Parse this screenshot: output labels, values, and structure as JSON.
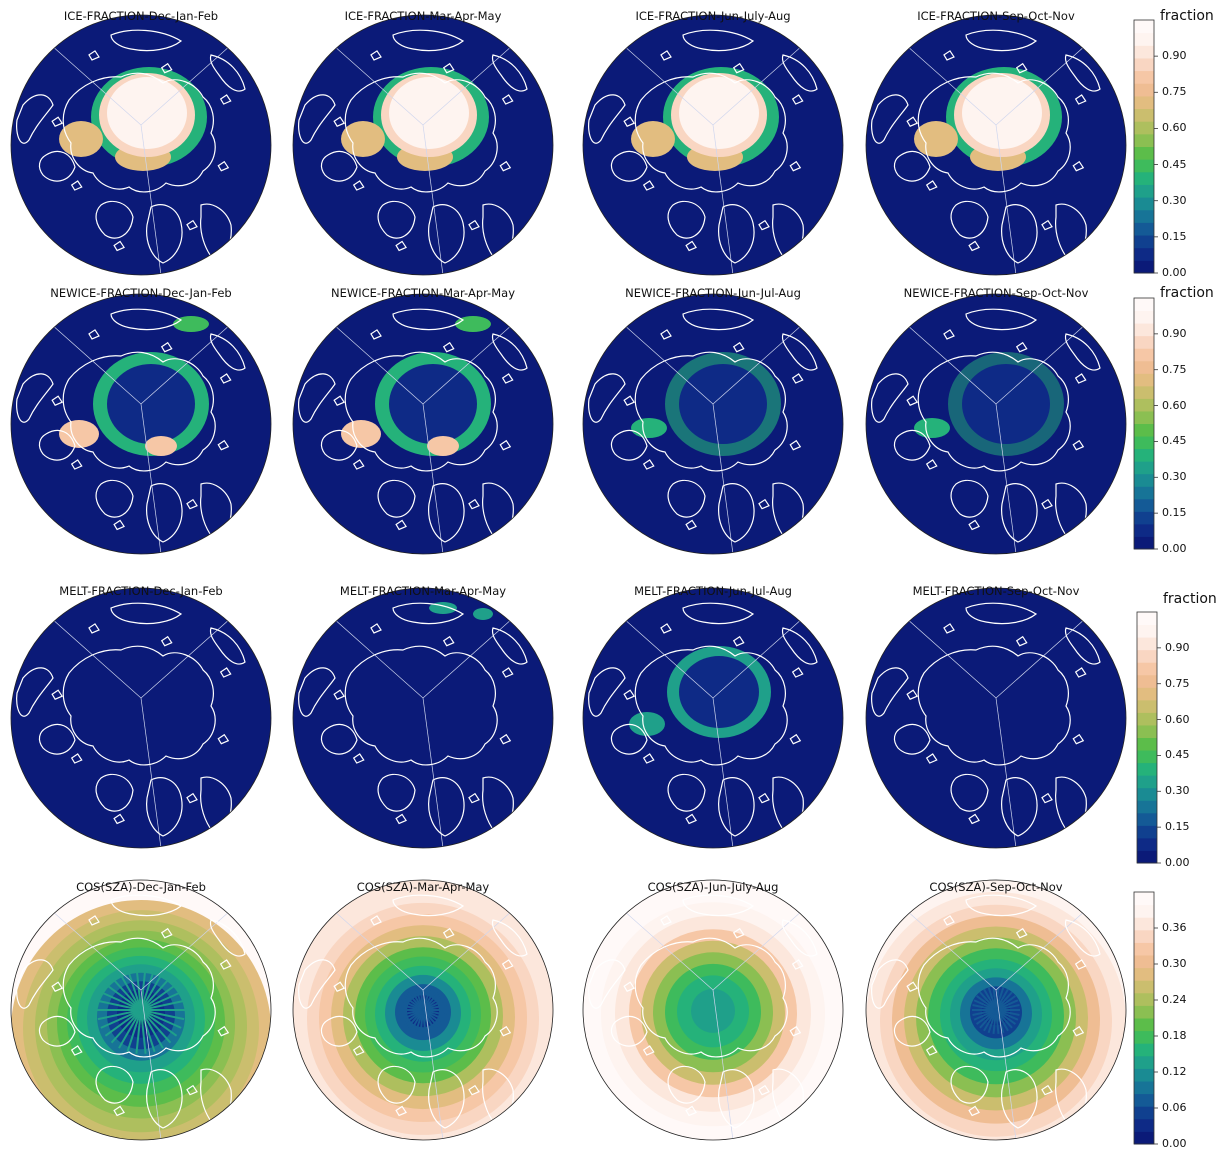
{
  "colors": {
    "scale": [
      "#0b1a78",
      "#0e2a86",
      "#10408f",
      "#145a96",
      "#177497",
      "#1a8b93",
      "#1fa08a",
      "#25b27a",
      "#3ebb5c",
      "#5cbd4a",
      "#8bbf52",
      "#aebf5e",
      "#cbbe6e",
      "#e2bd80",
      "#efbd93",
      "#f6c7a6",
      "#f9d6c2",
      "#fce7dc",
      "#fef4f0",
      "#fff9f8"
    ],
    "coast": "#ffffff"
  },
  "rows": [
    {
      "kind": "ice",
      "colorbar_label": "fraction",
      "ticks": [
        "0.00",
        "0.15",
        "0.30",
        "0.45",
        "0.60",
        "0.75",
        "0.90"
      ],
      "panels": [
        {
          "title": "ICE-FRACTION-Dec-Jan-Feb"
        },
        {
          "title": "ICE-FRACTION-Mar-Apr-May"
        },
        {
          "title": "ICE-FRACTION-Jun-July-Aug"
        },
        {
          "title": "ICE-FRACTION-Sep-Oct-Nov"
        }
      ]
    },
    {
      "kind": "newice",
      "colorbar_label": "fraction",
      "ticks": [
        "0.00",
        "0.15",
        "0.30",
        "0.45",
        "0.60",
        "0.75",
        "0.90"
      ],
      "panels": [
        {
          "title": "NEWICE-FRACTION-Dec-Jan-Feb"
        },
        {
          "title": "NEWICE-FRACTION-Mar-Apr-May"
        },
        {
          "title": "NEWICE-FRACTION-Jun-Jul-Aug"
        },
        {
          "title": "NEWICE-FRACTION-Sep-Oct-Nov"
        }
      ]
    },
    {
      "kind": "melt",
      "colorbar_label": "fraction",
      "ticks": [
        "0.00",
        "0.15",
        "0.30",
        "0.45",
        "0.60",
        "0.75",
        "0.90"
      ],
      "panels": [
        {
          "title": "MELT-FRACTION-Dec-Jan-Feb"
        },
        {
          "title": "MELT-FRACTION-Mar-Apr-May"
        },
        {
          "title": "MELT-FRACTION-Jun-Jul-Aug"
        },
        {
          "title": "MELT-FRACTION-Sep-Oct-Nov"
        }
      ]
    },
    {
      "kind": "cos",
      "colorbar_label": "",
      "ticks": [
        "0.00",
        "0.06",
        "0.12",
        "0.18",
        "0.24",
        "0.30",
        "0.36"
      ],
      "panels": [
        {
          "title": "COS(SZA)-Dec-Jan-Feb"
        },
        {
          "title": "COS(SZA)-Mar-Apr-May"
        },
        {
          "title": "COS(SZA)-Jun-July-Aug"
        },
        {
          "title": "COS(SZA)-Sep-Oct-Nov"
        }
      ]
    }
  ]
}
